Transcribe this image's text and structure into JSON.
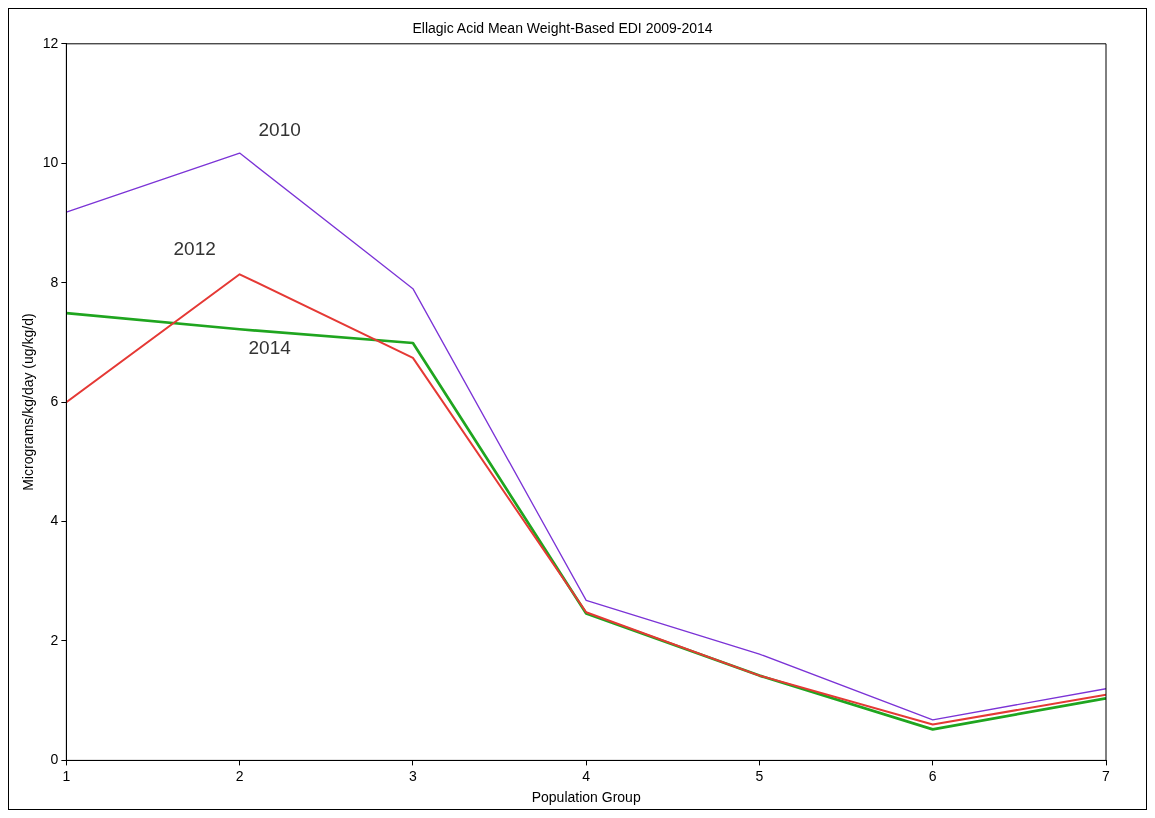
{
  "chart_data": {
    "type": "line",
    "title": "Ellagic Acid Mean Weight-Based EDI 2009-2014",
    "xlabel": "Population Group",
    "ylabel": "Micrograms/kg/day (ug/kg/d)",
    "x": [
      1,
      2,
      3,
      4,
      5,
      6,
      7
    ],
    "series": [
      {
        "name": "2010",
        "color": "#7b33d6",
        "values": [
          9.18,
          10.17,
          7.9,
          2.68,
          1.78,
          0.68,
          1.2
        ]
      },
      {
        "name": "2012",
        "color": "#e53935",
        "values": [
          6.0,
          8.14,
          6.74,
          2.48,
          1.42,
          0.6,
          1.1
        ]
      },
      {
        "name": "2014",
        "color": "#1fa51f",
        "values": [
          7.49,
          7.22,
          6.99,
          2.46,
          1.42,
          0.52,
          1.04
        ]
      }
    ],
    "xlim": [
      1,
      7
    ],
    "xticks": [
      1,
      2,
      3,
      4,
      5,
      6,
      7
    ],
    "ylim": [
      0,
      12
    ],
    "yticks": [
      0,
      2,
      4,
      6,
      8,
      10,
      12
    ],
    "grid": false,
    "legend": false,
    "marker": "none",
    "line_style": "solid"
  }
}
